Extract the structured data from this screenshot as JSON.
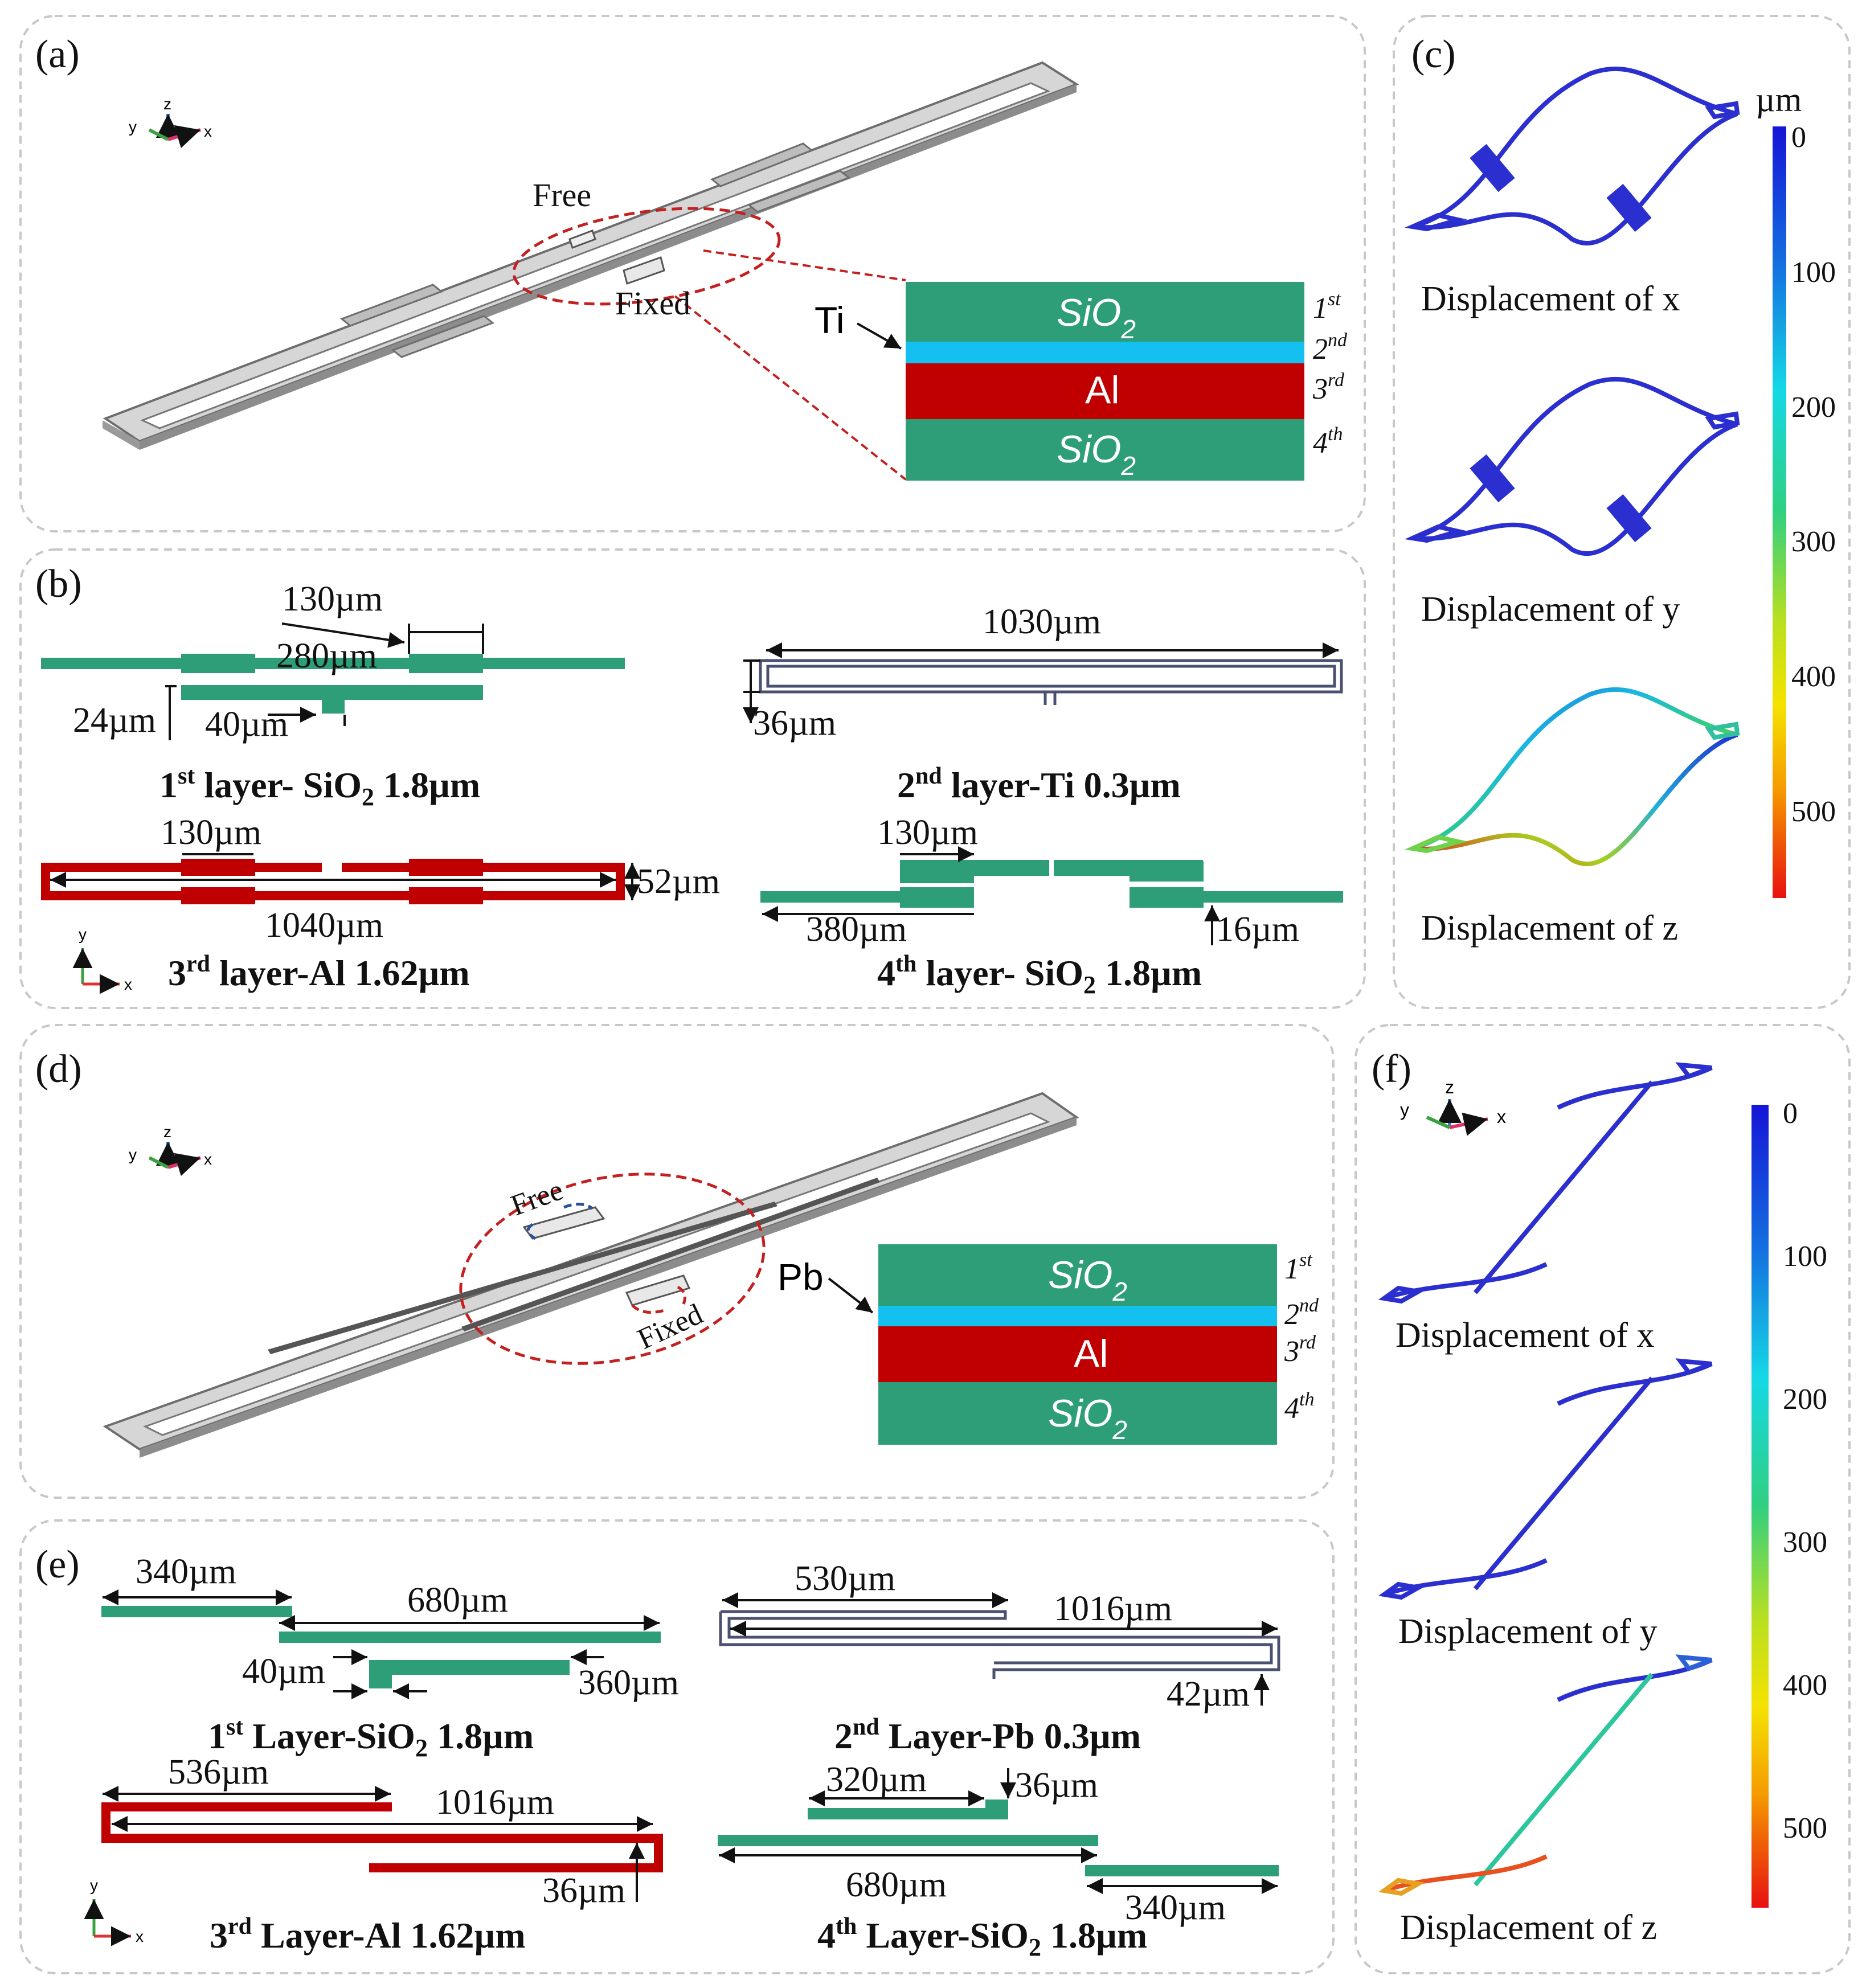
{
  "panels": {
    "a": "(a)",
    "b": "(b)",
    "c": "(c)",
    "d": "(d)",
    "e": "(e)",
    "f": "(f)"
  },
  "axes": {
    "x": "x",
    "y": "y",
    "z": "z"
  },
  "colors": {
    "sio2": "#2e9e78",
    "ti": "#14c0f0",
    "al": "#c00000",
    "beam": "#cfcfcf",
    "callout": "#c42020",
    "free_blue": "#2d4f9a"
  },
  "panel_a": {
    "free": "Free",
    "fixed": "Fixed",
    "ti": "Ti",
    "stack": {
      "sio2": "SiO",
      "sub2": "2",
      "al": "Al"
    },
    "ord": [
      {
        "n": "1",
        "s": "st"
      },
      {
        "n": "2",
        "s": "nd"
      },
      {
        "n": "3",
        "s": "rd"
      },
      {
        "n": "4",
        "s": "th"
      }
    ]
  },
  "panel_b": {
    "l1": {
      "d1": "130µm",
      "d2": "280µm",
      "d3": "24µm",
      "d4": "40µm",
      "cap_pre": "1",
      "cap_sup": "st",
      "cap_mid": " layer- SiO",
      "cap_sub": "2",
      "cap_post": " 1.8µm"
    },
    "l2": {
      "d1": "1030µm",
      "d2": "36µm",
      "cap_pre": "2",
      "cap_sup": "nd",
      "cap_mid": " layer-Ti 0.3µm"
    },
    "l3": {
      "d1": "130µm",
      "d2": "52µm",
      "d3": "1040µm",
      "cap_pre": "3",
      "cap_sup": "rd",
      "cap_mid": " layer-Al 1.62µm"
    },
    "l4": {
      "d1": "130µm",
      "d2": "380µm",
      "d3": "16µm",
      "cap_pre": "4",
      "cap_sup": "th",
      "cap_mid": " layer- SiO",
      "cap_sub": "2",
      "cap_post": " 1.8µm"
    }
  },
  "panel_c": {
    "unit": "µm",
    "ticks": [
      "0",
      "100",
      "200",
      "300",
      "400",
      "500"
    ],
    "labels": [
      "Displacement of x",
      "Displacement of y",
      "Displacement of z"
    ]
  },
  "panel_d": {
    "free": "Free",
    "fixed": "Fixed",
    "pb": "Pb",
    "stack": {
      "sio2": "SiO",
      "sub2": "2",
      "al": "Al"
    },
    "ord": [
      {
        "n": "1",
        "s": "st"
      },
      {
        "n": "2",
        "s": "nd"
      },
      {
        "n": "3",
        "s": "rd"
      },
      {
        "n": "4",
        "s": "th"
      }
    ]
  },
  "panel_e": {
    "l1": {
      "d1": "340µm",
      "d2": "680µm",
      "d3": "40µm",
      "d4": "360µm",
      "cap_pre": "1",
      "cap_sup": "st",
      "cap_mid": " Layer-SiO",
      "cap_sub": "2",
      "cap_post": " 1.8µm"
    },
    "l2": {
      "d1": "530µm",
      "d2": "1016µm",
      "d3": "42µm",
      "cap_pre": "2",
      "cap_sup": "nd",
      "cap_mid": " Layer-Pb 0.3µm"
    },
    "l3": {
      "d1": "536µm",
      "d2": "1016µm",
      "d3": "36µm",
      "cap_pre": "3",
      "cap_sup": "rd",
      "cap_mid": " Layer-Al 1.62µm"
    },
    "l4": {
      "d1": "320µm",
      "d2": "36µm",
      "d3": "680µm",
      "d4": "340µm",
      "cap_pre": "4",
      "cap_sup": "th",
      "cap_mid": " Layer-SiO",
      "cap_sub": "2",
      "cap_post": " 1.8µm"
    }
  },
  "panel_f": {
    "ticks": [
      "0",
      "100",
      "200",
      "300",
      "400",
      "500"
    ],
    "labels": [
      "Displacement of x",
      "Displacement of y",
      "Displacement of z"
    ]
  }
}
